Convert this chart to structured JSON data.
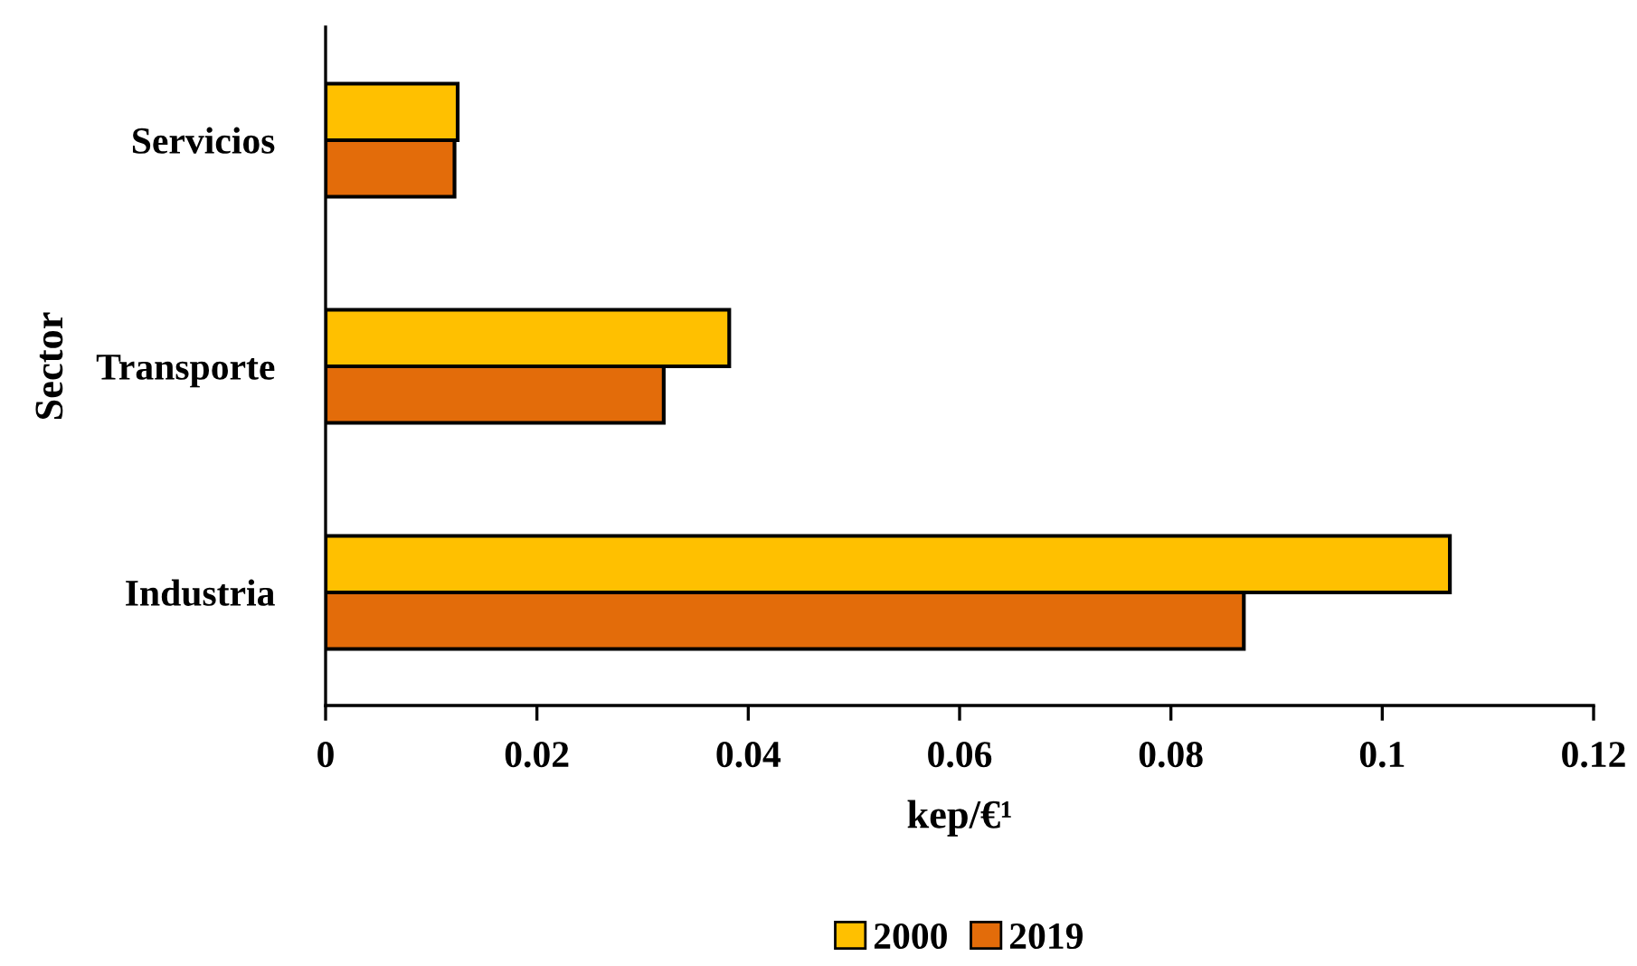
{
  "chart_data": {
    "type": "bar",
    "orientation": "horizontal",
    "xlabel": "kep/€¹",
    "ylabel": "Sector",
    "categories": [
      "Servicios",
      "Transporte",
      "Industria"
    ],
    "series": [
      {
        "name": "2000",
        "color": "#ffc000",
        "values": [
          0.0125,
          0.0382,
          0.1064
        ]
      },
      {
        "name": "2019",
        "color": "#e36c0a",
        "values": [
          0.0122,
          0.032,
          0.0869
        ]
      }
    ],
    "xlim": [
      0,
      0.12
    ],
    "xticks": [
      0,
      0.02,
      0.04,
      0.06,
      0.08,
      0.1,
      0.12
    ],
    "grid": false,
    "legend": "bottom"
  }
}
